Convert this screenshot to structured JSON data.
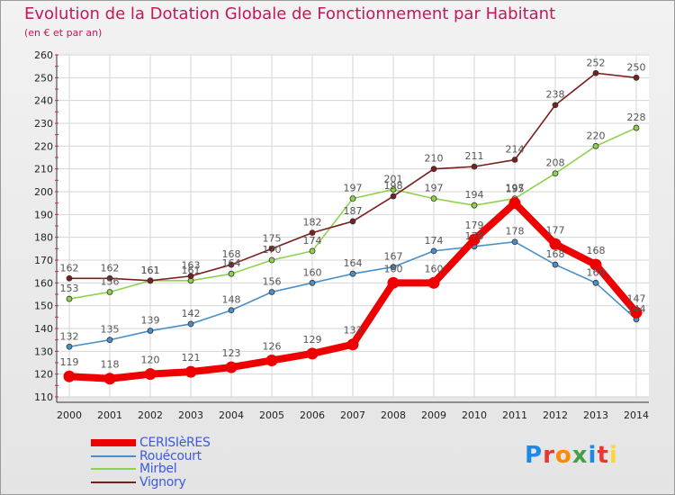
{
  "header": {
    "title": "Evolution de la Dotation Globale de Fonctionnement par Habitant",
    "subtitle": "(en € et par an)"
  },
  "logo": {
    "text": "Proxiti",
    "letter_colors": [
      "#1e88e5",
      "#e53935",
      "#fb8c00",
      "#43a047",
      "#1e88e5",
      "#e53935",
      "#fdd835"
    ]
  },
  "chart_data": {
    "type": "line",
    "title": "Evolution de la Dotation Globale de Fonctionnement par Habitant",
    "subtitle": "(en € et par an)",
    "xlabel": "",
    "ylabel": "",
    "x": [
      "2000",
      "2001",
      "2002",
      "2003",
      "2004",
      "2005",
      "2006",
      "2007",
      "2008",
      "2009",
      "2010",
      "2011",
      "2012",
      "2013",
      "2014"
    ],
    "ylim": [
      110,
      260
    ],
    "yticks": [
      110,
      120,
      130,
      140,
      150,
      160,
      170,
      180,
      190,
      200,
      210,
      220,
      230,
      240,
      250,
      260
    ],
    "grid": true,
    "legend_position": "bottom-left",
    "series": [
      {
        "name": "CERISIèRES",
        "color": "#ee0000",
        "emphasis": true,
        "values": [
          119,
          118,
          120,
          121,
          123,
          126,
          129,
          133,
          160,
          160,
          179,
          195,
          177,
          168,
          147
        ]
      },
      {
        "name": "Rouécourt",
        "color": "#4a90c8",
        "emphasis": false,
        "values": [
          132,
          135,
          139,
          142,
          148,
          156,
          160,
          164,
          167,
          174,
          176,
          178,
          168,
          160,
          144
        ]
      },
      {
        "name": "Mirbel",
        "color": "#8fd14f",
        "emphasis": false,
        "values": [
          153,
          156,
          161,
          161,
          164,
          170,
          174,
          197,
          201,
          197,
          194,
          197,
          208,
          220,
          228
        ]
      },
      {
        "name": "Vignory",
        "color": "#7a1f1f",
        "emphasis": false,
        "values": [
          162,
          162,
          161,
          163,
          168,
          175,
          182,
          187,
          198,
          210,
          211,
          214,
          238,
          252,
          250
        ]
      }
    ]
  }
}
